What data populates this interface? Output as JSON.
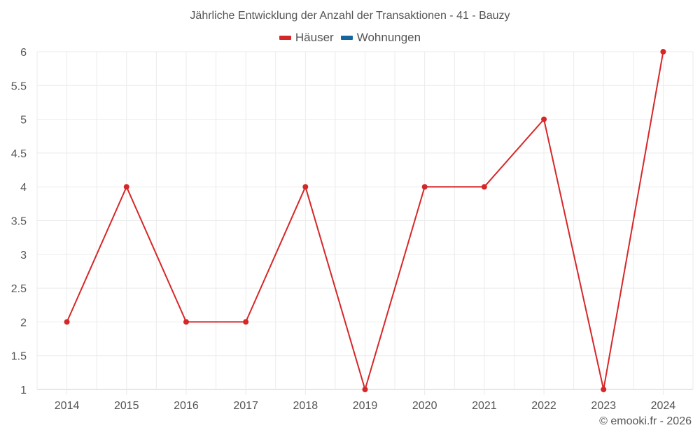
{
  "title": "Jährliche Entwicklung der Anzahl der Transaktionen - 41 - Bauzy",
  "legend": [
    {
      "label": "Häuser",
      "color": "#d62728"
    },
    {
      "label": "Wohnungen",
      "color": "#1565a0"
    }
  ],
  "credit": "© emooki.fr - 2026",
  "chart_data": {
    "type": "line",
    "title": "Jährliche Entwicklung der Anzahl der Transaktionen - 41 - Bauzy",
    "xlabel": "",
    "ylabel": "",
    "categories": [
      "2014",
      "2015",
      "2016",
      "2017",
      "2018",
      "2019",
      "2020",
      "2021",
      "2022",
      "2023",
      "2024"
    ],
    "series": [
      {
        "name": "Häuser",
        "color": "#d62728",
        "values": [
          2,
          4,
          2,
          2,
          4,
          1,
          4,
          4,
          5,
          1,
          6
        ]
      },
      {
        "name": "Wohnungen",
        "color": "#1565a0",
        "values": []
      }
    ],
    "ylim": [
      1,
      6
    ],
    "yticks": [
      "1",
      "1.5",
      "2",
      "2.5",
      "3",
      "3.5",
      "4",
      "4.5",
      "5",
      "5.5",
      "6"
    ],
    "grid": true,
    "legend_position": "top"
  }
}
